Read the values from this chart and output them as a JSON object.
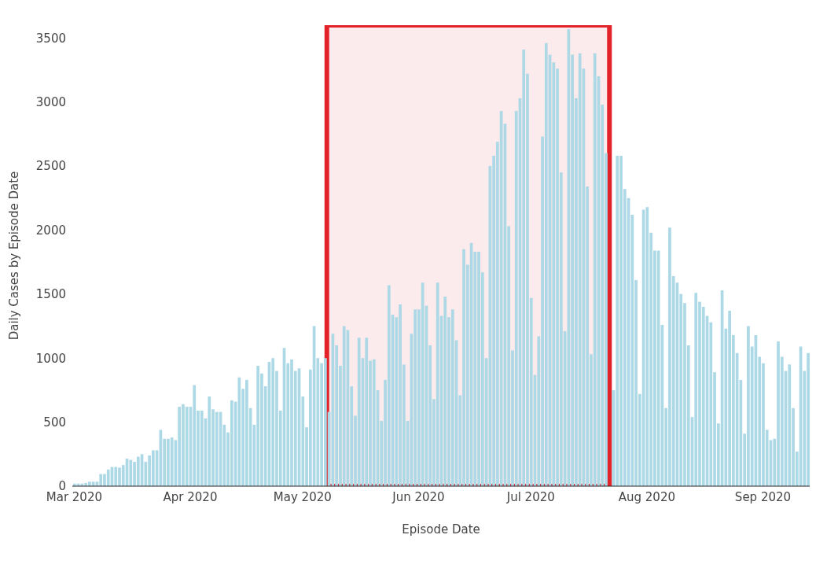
{
  "chart_data": {
    "type": "bar",
    "xlabel": "Episode Date",
    "ylabel": "Daily Cases by Episode Date",
    "color": "#add8e6",
    "x": [
      "2020-03-01",
      "2020-03-02",
      "2020-03-03",
      "2020-03-04",
      "2020-03-05",
      "2020-03-06",
      "2020-03-07",
      "2020-03-08",
      "2020-03-09",
      "2020-03-10",
      "2020-03-11",
      "2020-03-12",
      "2020-03-13",
      "2020-03-14",
      "2020-03-15",
      "2020-03-16",
      "2020-03-17",
      "2020-03-18",
      "2020-03-19",
      "2020-03-20",
      "2020-03-21",
      "2020-03-22",
      "2020-03-23",
      "2020-03-24",
      "2020-03-25",
      "2020-03-26",
      "2020-03-27",
      "2020-03-28",
      "2020-03-29",
      "2020-03-30",
      "2020-03-31",
      "2020-04-01",
      "2020-04-02",
      "2020-04-03",
      "2020-04-04",
      "2020-04-05",
      "2020-04-06",
      "2020-04-07",
      "2020-04-08",
      "2020-04-09",
      "2020-04-10",
      "2020-04-11",
      "2020-04-12",
      "2020-04-13",
      "2020-04-14",
      "2020-04-15",
      "2020-04-16",
      "2020-04-17",
      "2020-04-18",
      "2020-04-19",
      "2020-04-20",
      "2020-04-21",
      "2020-04-22",
      "2020-04-23",
      "2020-04-24",
      "2020-04-25",
      "2020-04-26",
      "2020-04-27",
      "2020-04-28",
      "2020-04-29",
      "2020-04-30",
      "2020-05-01",
      "2020-05-02",
      "2020-05-03",
      "2020-05-04",
      "2020-05-05",
      "2020-05-06",
      "2020-05-07",
      "2020-05-08",
      "2020-05-09",
      "2020-05-10",
      "2020-05-11",
      "2020-05-12",
      "2020-05-13",
      "2020-05-14",
      "2020-05-15",
      "2020-05-16",
      "2020-05-17",
      "2020-05-18",
      "2020-05-19",
      "2020-05-20",
      "2020-05-21",
      "2020-05-22",
      "2020-05-23",
      "2020-05-24",
      "2020-05-25",
      "2020-05-26",
      "2020-05-27",
      "2020-05-28",
      "2020-05-29",
      "2020-05-30",
      "2020-05-31",
      "2020-06-01",
      "2020-06-02",
      "2020-06-03",
      "2020-06-04",
      "2020-06-05",
      "2020-06-06",
      "2020-06-07",
      "2020-06-08",
      "2020-06-09",
      "2020-06-10",
      "2020-06-11",
      "2020-06-12",
      "2020-06-13",
      "2020-06-14",
      "2020-06-15",
      "2020-06-16",
      "2020-06-17",
      "2020-06-18",
      "2020-06-19",
      "2020-06-20",
      "2020-06-21",
      "2020-06-22",
      "2020-06-23",
      "2020-06-24",
      "2020-06-25",
      "2020-06-26",
      "2020-06-27",
      "2020-06-28",
      "2020-06-29",
      "2020-06-30",
      "2020-07-01",
      "2020-07-02",
      "2020-07-03",
      "2020-07-04",
      "2020-07-05",
      "2020-07-06",
      "2020-07-07",
      "2020-07-08",
      "2020-07-09",
      "2020-07-10",
      "2020-07-11",
      "2020-07-12",
      "2020-07-13",
      "2020-07-14",
      "2020-07-15",
      "2020-07-16",
      "2020-07-17",
      "2020-07-18",
      "2020-07-19",
      "2020-07-20",
      "2020-07-21",
      "2020-07-22",
      "2020-07-23",
      "2020-07-24",
      "2020-07-25",
      "2020-07-26",
      "2020-07-27",
      "2020-07-28",
      "2020-07-29",
      "2020-07-30",
      "2020-07-31",
      "2020-08-01",
      "2020-08-02",
      "2020-08-03",
      "2020-08-04",
      "2020-08-05",
      "2020-08-06",
      "2020-08-07",
      "2020-08-08",
      "2020-08-09",
      "2020-08-10",
      "2020-08-11",
      "2020-08-12",
      "2020-08-13",
      "2020-08-14",
      "2020-08-15",
      "2020-08-16",
      "2020-08-17",
      "2020-08-18",
      "2020-08-19",
      "2020-08-20",
      "2020-08-21",
      "2020-08-22",
      "2020-08-23",
      "2020-08-24",
      "2020-08-25",
      "2020-08-26",
      "2020-08-27",
      "2020-08-28",
      "2020-08-29",
      "2020-08-30",
      "2020-08-31",
      "2020-09-01",
      "2020-09-02",
      "2020-09-03",
      "2020-09-04",
      "2020-09-05",
      "2020-09-06",
      "2020-09-07",
      "2020-09-08",
      "2020-09-09",
      "2020-09-10",
      "2020-09-11",
      "2020-09-12",
      "2020-09-13"
    ],
    "values": [
      20,
      20,
      20,
      25,
      35,
      35,
      35,
      95,
      95,
      130,
      150,
      150,
      145,
      165,
      215,
      205,
      190,
      230,
      250,
      190,
      240,
      280,
      280,
      440,
      370,
      370,
      380,
      360,
      620,
      640,
      620,
      620,
      790,
      590,
      590,
      530,
      700,
      600,
      580,
      580,
      480,
      420,
      670,
      660,
      850,
      760,
      830,
      610,
      480,
      940,
      880,
      780,
      970,
      1000,
      900,
      590,
      1080,
      960,
      990,
      900,
      920,
      700,
      460,
      910,
      1250,
      1000,
      960,
      1000,
      580,
      1190,
      1100,
      940,
      1250,
      1220,
      780,
      550,
      1160,
      1000,
      1160,
      980,
      990,
      750,
      510,
      830,
      1570,
      1340,
      1320,
      1420,
      950,
      510,
      1190,
      1380,
      1380,
      1590,
      1410,
      1100,
      680,
      1590,
      1330,
      1480,
      1320,
      1380,
      1140,
      710,
      1850,
      1730,
      1900,
      1830,
      1830,
      1670,
      1000,
      2500,
      2580,
      2690,
      2930,
      2830,
      2030,
      1060,
      2930,
      3030,
      3410,
      3220,
      1470,
      870,
      1170,
      2730,
      3460,
      3370,
      3310,
      3260,
      2450,
      1210,
      3570,
      3370,
      3030,
      3380,
      3260,
      2340,
      1030,
      3380,
      3200,
      2980,
      2600,
      null,
      750,
      2580,
      2580,
      2320,
      2250,
      2120,
      1610,
      720,
      2160,
      2180,
      1980,
      1840,
      1840,
      1260,
      610,
      2020,
      1640,
      1590,
      1500,
      1430,
      1100,
      540,
      1510,
      1440,
      1400,
      1330,
      1280,
      890,
      490,
      1530,
      1230,
      1370,
      1180,
      1040,
      830,
      410,
      1250,
      1090,
      1180,
      1010,
      960,
      440,
      360,
      370,
      1130,
      1010,
      900,
      950,
      610,
      270,
      1090,
      900,
      1040
    ],
    "xlim": [
      "2020-02-29T12:00",
      "2020-09-13T12:00"
    ],
    "xticks": [
      {
        "value": "2020-03-01",
        "label": "Mar 2020"
      },
      {
        "value": "2020-04-01",
        "label": "Apr 2020"
      },
      {
        "value": "2020-05-01",
        "label": "May 2020"
      },
      {
        "value": "2020-06-01",
        "label": "Jun 2020"
      },
      {
        "value": "2020-07-01",
        "label": "Jul 2020"
      },
      {
        "value": "2020-08-01",
        "label": "Aug 2020"
      },
      {
        "value": "2020-09-01",
        "label": "Sep 2020"
      }
    ],
    "ylim": [
      0,
      3600
    ],
    "yticks": [
      0,
      500,
      1000,
      1500,
      2000,
      2500,
      3000,
      3500
    ],
    "bands": [
      {
        "axis": "x",
        "from": "2020-05-07T12:00",
        "to": "2020-07-22",
        "color": "#e3232a"
      }
    ]
  }
}
